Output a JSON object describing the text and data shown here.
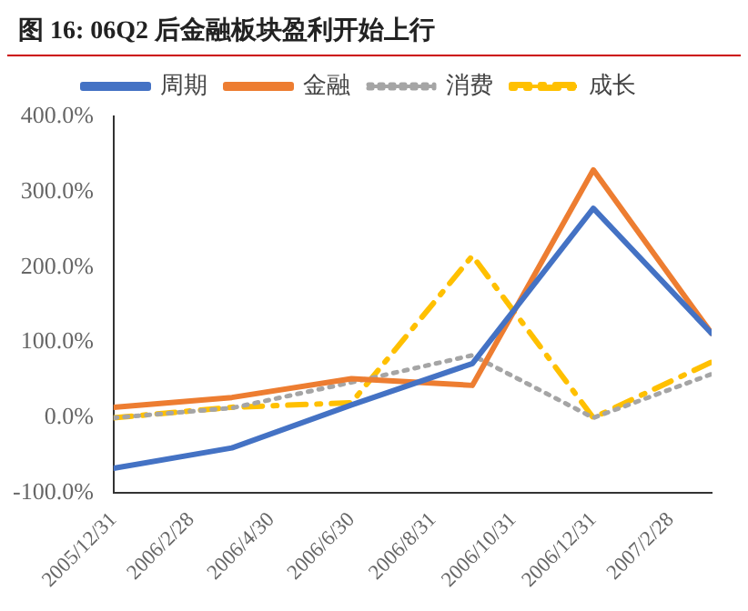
{
  "chart_data": {
    "type": "line",
    "title": "图 16:  06Q2 后金融板块盈利开始上行",
    "x": [
      "2005-12-31",
      "2006-03-31",
      "2006-06-30",
      "2006-09-30",
      "2006-12-31",
      "2007-03-31"
    ],
    "xlim": [
      "2005-12-31",
      "2007-03-31"
    ],
    "xticks": [
      {
        "value": "2005-12-31",
        "label": "2005/12/31"
      },
      {
        "value": "2006-02-28",
        "label": "2006/2/28"
      },
      {
        "value": "2006-04-30",
        "label": "2006/4/30"
      },
      {
        "value": "2006-06-30",
        "label": "2006/6/30"
      },
      {
        "value": "2006-08-31",
        "label": "2006/8/31"
      },
      {
        "value": "2006-10-31",
        "label": "2006/10/31"
      },
      {
        "value": "2006-12-31",
        "label": "2006/12/31"
      },
      {
        "value": "2007-02-28",
        "label": "2007/2/28"
      }
    ],
    "ylim": [
      -100,
      400
    ],
    "yticks": [
      {
        "value": -100,
        "label": "-100.0%"
      },
      {
        "value": 0,
        "label": "0.0%"
      },
      {
        "value": 100,
        "label": "100.0%"
      },
      {
        "value": 200,
        "label": "200.0%"
      },
      {
        "value": 300,
        "label": "300.0%"
      },
      {
        "value": 400,
        "label": "400.0%"
      }
    ],
    "grid": false,
    "legend": "top",
    "marker": "none",
    "series": [
      {
        "name": "周期",
        "color": "#4472c4",
        "line_style": "solid",
        "values": [
          -67,
          -40,
          17,
          72,
          278,
          112
        ]
      },
      {
        "name": "金融",
        "color": "#ed7d31",
        "line_style": "solid",
        "values": [
          14,
          27,
          52,
          43,
          329,
          112
        ]
      },
      {
        "name": "消费",
        "color": "#a5a5a5",
        "line_style": "dotted",
        "values": [
          0,
          13,
          47,
          83,
          0,
          58
        ]
      },
      {
        "name": "成长",
        "color": "#ffc000",
        "line_style": "dashdot",
        "values": [
          0,
          14,
          20,
          215,
          0,
          74
        ]
      }
    ]
  }
}
